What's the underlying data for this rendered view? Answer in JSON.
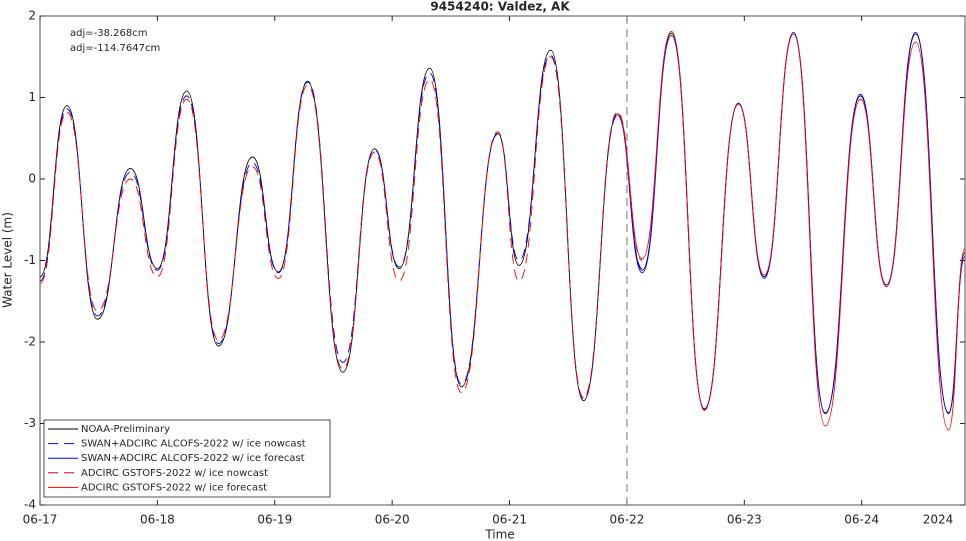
{
  "chart_data": {
    "type": "line",
    "title": "9454240: Valdez, AK",
    "xlabel": "Time",
    "ylabel": "Water Level (m)",
    "x_year_label": "2024",
    "annotations": [
      {
        "text": "adj=-38.268cm",
        "color": "#0000ff"
      },
      {
        "text": "adj=-114.7647cm",
        "color": "#ff0000"
      }
    ],
    "vline_x": 5,
    "xlim": [
      0,
      7.88
    ],
    "ylim": [
      -4,
      2
    ],
    "xticks": [
      {
        "value": 0,
        "label": "06-17"
      },
      {
        "value": 1,
        "label": "06-18"
      },
      {
        "value": 2,
        "label": "06-19"
      },
      {
        "value": 3,
        "label": "06-20"
      },
      {
        "value": 4,
        "label": "06-21"
      },
      {
        "value": 5,
        "label": "06-22"
      },
      {
        "value": 6,
        "label": "06-23"
      },
      {
        "value": 7,
        "label": "06-24"
      }
    ],
    "yticks": [
      -4,
      -3,
      -2,
      -1,
      0,
      1,
      2
    ],
    "legend": "lower left",
    "x": [
      0,
      0.23,
      0.49,
      0.77,
      1.0,
      1.25,
      1.52,
      1.81,
      2.03,
      2.28,
      2.58,
      2.85,
      3.06,
      3.32,
      3.59,
      3.9,
      4.08,
      4.35,
      4.63,
      4.92,
      5.13,
      5.38,
      5.66,
      5.95,
      6.17,
      6.42,
      6.69,
      6.99,
      7.21,
      7.46,
      7.74,
      7.88
    ],
    "series": [
      {
        "name": "NOAA-Preliminary",
        "color": "#000000",
        "dash": false,
        "values": [
          -1.2,
          0.9,
          -1.72,
          0.13,
          -1.1,
          1.08,
          -2.05,
          0.27,
          -1.14,
          1.19,
          -2.37,
          0.37,
          -1.1,
          1.36,
          -2.55,
          0.56,
          -1.06,
          1.58,
          -2.72,
          0.8,
          -1.12,
          1.79,
          -2.83,
          0.93,
          -1.2,
          1.78,
          -2.87,
          1.02,
          -1.32,
          1.78,
          -2.87,
          -0.9
        ]
      },
      {
        "name": "SWAN+ADCIRC ALCOFS-2022 w/ ice nowcast",
        "color": "#0000ff",
        "dash": true,
        "values": [
          -1.25,
          0.86,
          -1.68,
          0.08,
          -1.12,
          1.02,
          -2.02,
          0.2,
          -1.15,
          1.2,
          -2.25,
          0.36,
          -1.08,
          1.3,
          -2.52,
          0.55,
          -1.0,
          1.52,
          -2.7,
          0.78,
          -1.1,
          null,
          null,
          null,
          null,
          null,
          null,
          null,
          null,
          null,
          null,
          null
        ]
      },
      {
        "name": "SWAN+ADCIRC ALCOFS-2022 w/ ice forecast",
        "color": "#0000ff",
        "dash": false,
        "values": [
          null,
          null,
          null,
          null,
          null,
          null,
          null,
          null,
          null,
          null,
          null,
          null,
          null,
          null,
          null,
          null,
          null,
          null,
          null,
          0.78,
          -1.15,
          1.76,
          -2.82,
          0.93,
          -1.22,
          1.8,
          -2.88,
          1.04,
          -1.3,
          1.8,
          -2.88,
          -0.95
        ]
      },
      {
        "name": "ADCIRC GSTOFS-2022 w/ ice nowcast",
        "color": "#ff0000",
        "dash": true,
        "values": [
          -1.28,
          0.82,
          -1.62,
          0.0,
          -1.2,
          0.98,
          -1.98,
          0.15,
          -1.22,
          1.15,
          -2.33,
          0.33,
          -1.25,
          1.22,
          -2.62,
          0.58,
          -1.25,
          1.5,
          -2.68,
          0.82,
          -1.0,
          null,
          null,
          null,
          null,
          null,
          null,
          null,
          null,
          null,
          null,
          null
        ]
      },
      {
        "name": "ADCIRC GSTOFS-2022 w/ ice forecast",
        "color": "#ff0000",
        "dash": false,
        "values": [
          null,
          null,
          null,
          null,
          null,
          null,
          null,
          null,
          null,
          null,
          null,
          null,
          null,
          null,
          null,
          null,
          null,
          null,
          null,
          0.8,
          -0.98,
          1.81,
          -2.84,
          0.92,
          -1.18,
          1.78,
          -3.03,
          0.98,
          -1.32,
          1.68,
          -3.08,
          -0.85
        ]
      }
    ]
  }
}
